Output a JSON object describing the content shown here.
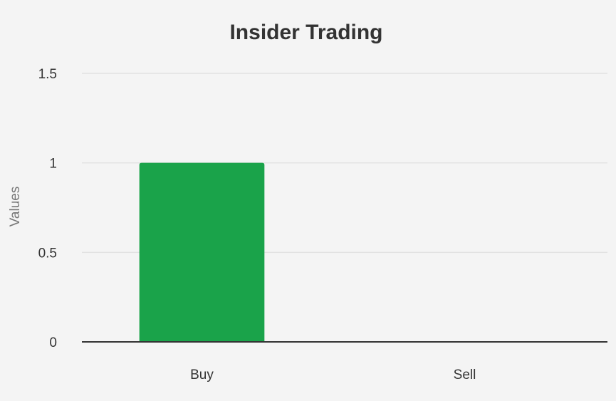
{
  "chart_data": {
    "type": "bar",
    "title": "Insider Trading",
    "y_label": "Values",
    "categories": [
      "Buy",
      "Sell"
    ],
    "values": [
      1,
      0
    ],
    "color": "#1aa34a",
    "ylim": [
      0,
      1.5
    ],
    "yticks": [
      0,
      0.5,
      1,
      1.5
    ],
    "grid": true
  }
}
